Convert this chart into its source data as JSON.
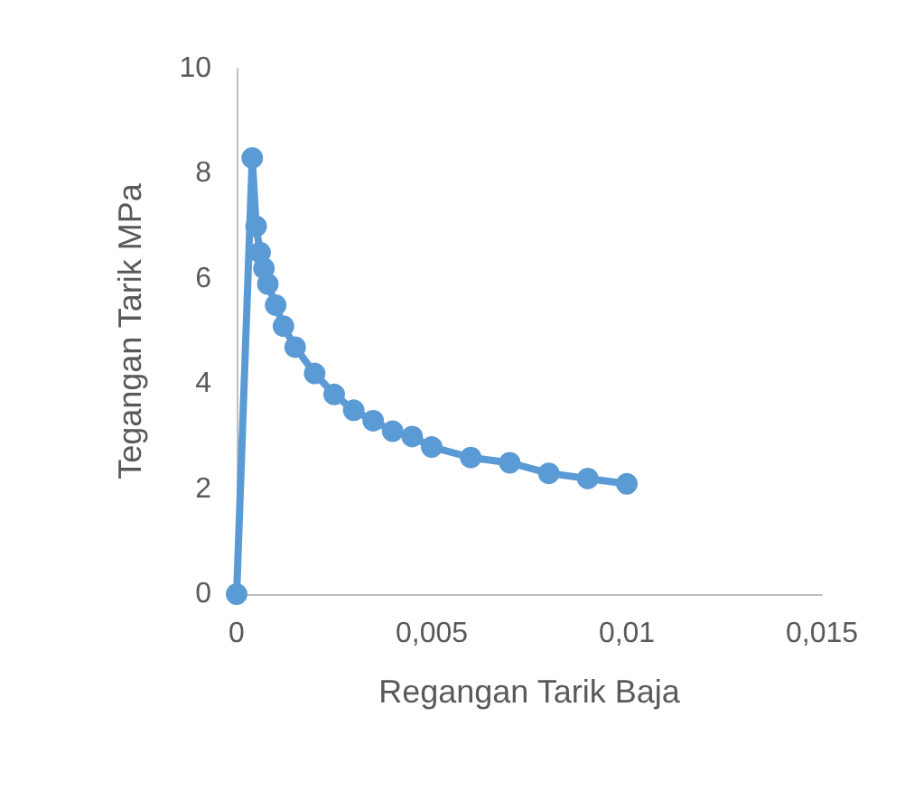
{
  "chart_data": {
    "type": "line",
    "xlabel": "Regangan Tarik Baja",
    "ylabel": "Tegangan Tarik MPa",
    "x": [
      0,
      0.0004,
      0.0005,
      0.0006,
      0.0007,
      0.0008,
      0.001,
      0.0012,
      0.0015,
      0.002,
      0.0025,
      0.003,
      0.0035,
      0.004,
      0.0045,
      0.005,
      0.006,
      0.007,
      0.008,
      0.009,
      0.01
    ],
    "series": [
      {
        "color": "#5b9bd5",
        "values": [
          0,
          8.3,
          7.0,
          6.5,
          6.2,
          5.9,
          5.5,
          5.1,
          4.7,
          4.2,
          3.8,
          3.5,
          3.3,
          3.1,
          3.0,
          2.8,
          2.6,
          2.5,
          2.3,
          2.2,
          2.1
        ]
      }
    ],
    "xlim": [
      0,
      0.015
    ],
    "xticks": [
      0,
      {
        "value": 0.005,
        "label": "0,005"
      },
      {
        "value": 0.01,
        "label": "0,01"
      },
      {
        "value": 0.015,
        "label": "0,015"
      }
    ],
    "ylim": [
      0,
      10
    ],
    "yticks": [
      0,
      2,
      4,
      6,
      8,
      10
    ],
    "grid": false,
    "marker": "circle",
    "line_style": "solid"
  }
}
